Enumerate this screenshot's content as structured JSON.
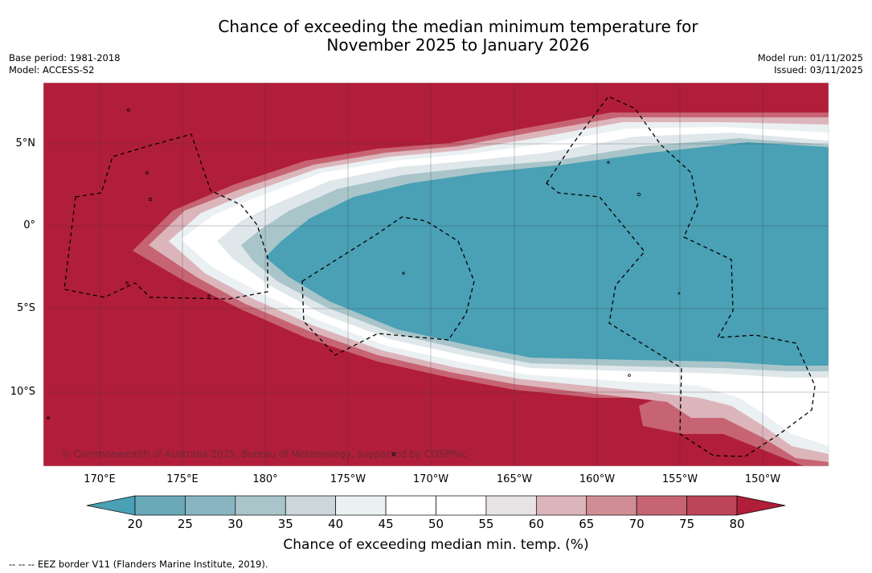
{
  "title": {
    "line1": "Chance of exceeding the median minimum temperature for",
    "line2": "November 2025 to January 2026"
  },
  "meta_left": {
    "base_period": "Base period: 1981-2018",
    "model": "Model: ACCESS-S2"
  },
  "meta_right": {
    "model_run": "Model run: 01/11/2025",
    "issued": "Issued: 03/11/2025"
  },
  "map": {
    "copyright": "© Commonwealth of Australia 2025, Bureau of Meteorology, supported by COSPPac",
    "lon_ticks": [
      "170°E",
      "175°E",
      "180°",
      "175°W",
      "170°W",
      "165°W",
      "160°W",
      "155°W",
      "150°W"
    ],
    "lat_ticks": [
      "5°N",
      "0°",
      "5°S",
      "10°S"
    ],
    "colors": {
      "band_80plus": "#b11e3a",
      "band_20minus": "#4aa0b4",
      "border": "#000000"
    }
  },
  "colorbar": {
    "label": "Chance of exceeding median min. temp. (%)",
    "ticks": [
      "20",
      "25",
      "30",
      "35",
      "40",
      "45",
      "50",
      "55",
      "60",
      "65",
      "70",
      "75",
      "80"
    ],
    "colors": [
      "#4aa0b4",
      "#69a9b8",
      "#88b5c1",
      "#a9c5ca",
      "#cbd7da",
      "#ebf0f3",
      "#ffffff",
      "#ffffff",
      "#e8e3e5",
      "#dcb5bb",
      "#d18d95",
      "#c76473",
      "#bd4558",
      "#b11e3a"
    ]
  },
  "footnote": "--  --  -- EEZ border V11 (Flanders Marine Institute, 2019)."
}
